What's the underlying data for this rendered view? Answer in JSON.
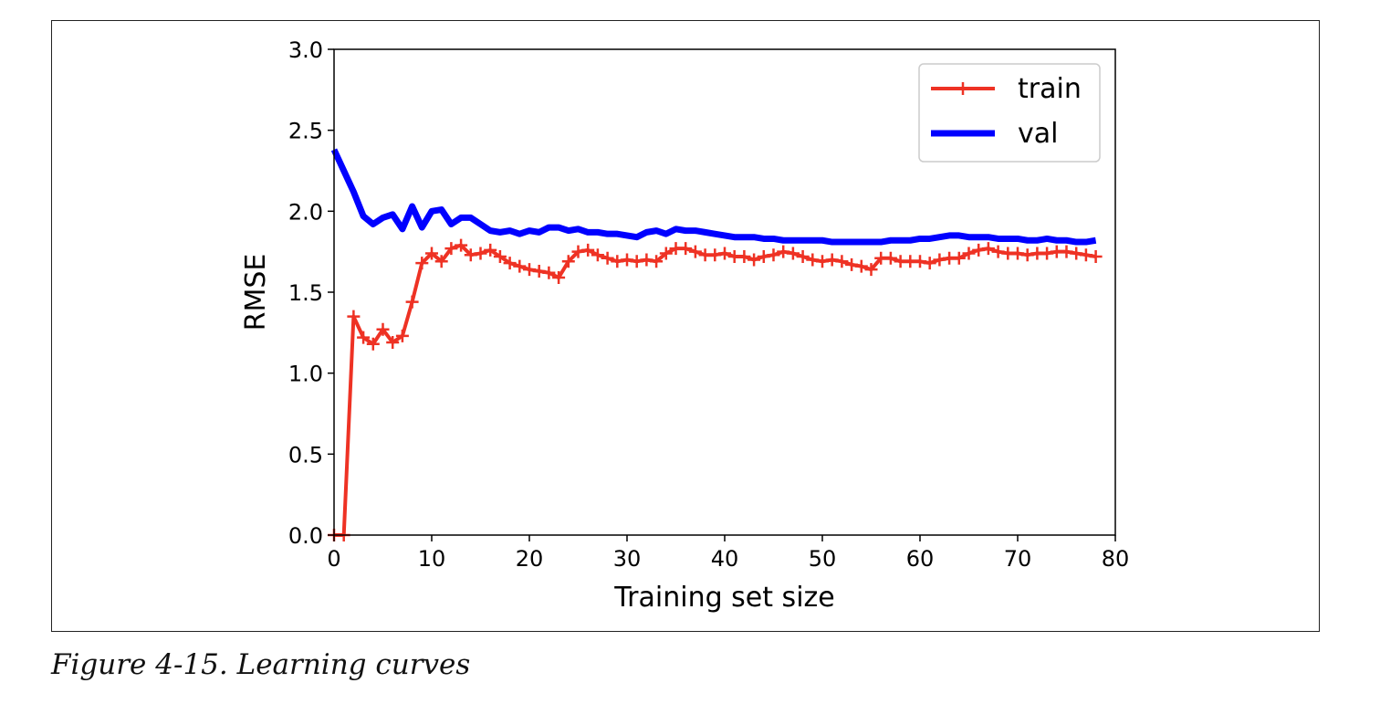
{
  "caption": "Figure 4-15. Learning curves",
  "chart_data": {
    "type": "line",
    "title": "",
    "xlabel": "Training set size",
    "ylabel": "RMSE",
    "xlim": [
      0,
      80
    ],
    "ylim": [
      0,
      3.0
    ],
    "xticks": [
      0,
      10,
      20,
      30,
      40,
      50,
      60,
      70,
      80
    ],
    "xtick_labels": [
      "0",
      "10",
      "20",
      "30",
      "40",
      "50",
      "60",
      "70",
      "80"
    ],
    "yticks": [
      0,
      0.5,
      1.0,
      1.5,
      2.0,
      2.5,
      3.0
    ],
    "ytick_labels": [
      "0.0",
      "0.5",
      "1.0",
      "1.5",
      "2.0",
      "2.5",
      "3.0"
    ],
    "grid": false,
    "legend_position": "top-right",
    "x": [
      0,
      1,
      2,
      3,
      4,
      5,
      6,
      7,
      8,
      9,
      10,
      11,
      12,
      13,
      14,
      15,
      16,
      17,
      18,
      19,
      20,
      21,
      22,
      23,
      24,
      25,
      26,
      27,
      28,
      29,
      30,
      31,
      32,
      33,
      34,
      35,
      36,
      37,
      38,
      39,
      40,
      41,
      42,
      43,
      44,
      45,
      46,
      47,
      48,
      49,
      50,
      51,
      52,
      53,
      54,
      55,
      56,
      57,
      58,
      59,
      60,
      61,
      62,
      63,
      64,
      65,
      66,
      67,
      68,
      69,
      70,
      71,
      72,
      73,
      74,
      75,
      76,
      77,
      78
    ],
    "series": [
      {
        "name": "train",
        "color": "#ee3224",
        "marker": "+",
        "values": [
          0,
          0,
          1.35,
          1.22,
          1.18,
          1.27,
          1.19,
          1.23,
          1.44,
          1.68,
          1.74,
          1.69,
          1.77,
          1.79,
          1.73,
          1.74,
          1.76,
          1.72,
          1.68,
          1.66,
          1.64,
          1.63,
          1.62,
          1.59,
          1.69,
          1.75,
          1.76,
          1.73,
          1.71,
          1.69,
          1.7,
          1.69,
          1.7,
          1.69,
          1.74,
          1.77,
          1.77,
          1.75,
          1.73,
          1.73,
          1.74,
          1.72,
          1.72,
          1.7,
          1.72,
          1.73,
          1.75,
          1.74,
          1.72,
          1.7,
          1.69,
          1.7,
          1.69,
          1.67,
          1.66,
          1.64,
          1.71,
          1.71,
          1.69,
          1.69,
          1.69,
          1.68,
          1.7,
          1.71,
          1.71,
          1.74,
          1.76,
          1.77,
          1.75,
          1.74,
          1.74,
          1.73,
          1.74,
          1.74,
          1.75,
          1.75,
          1.74,
          1.73,
          1.72
        ]
      },
      {
        "name": "val",
        "color": "#0000ff",
        "marker": "",
        "values": [
          2.38,
          2.25,
          2.12,
          1.97,
          1.92,
          1.96,
          1.98,
          1.89,
          2.03,
          1.9,
          2.0,
          2.01,
          1.92,
          1.96,
          1.96,
          1.92,
          1.88,
          1.87,
          1.88,
          1.86,
          1.88,
          1.87,
          1.9,
          1.9,
          1.88,
          1.89,
          1.87,
          1.87,
          1.86,
          1.86,
          1.85,
          1.84,
          1.87,
          1.88,
          1.86,
          1.89,
          1.88,
          1.88,
          1.87,
          1.86,
          1.85,
          1.84,
          1.84,
          1.84,
          1.83,
          1.83,
          1.82,
          1.82,
          1.82,
          1.82,
          1.82,
          1.81,
          1.81,
          1.81,
          1.81,
          1.81,
          1.81,
          1.82,
          1.82,
          1.82,
          1.83,
          1.83,
          1.84,
          1.85,
          1.85,
          1.84,
          1.84,
          1.84,
          1.83,
          1.83,
          1.83,
          1.82,
          1.82,
          1.83,
          1.82,
          1.82,
          1.81,
          1.81,
          1.82
        ]
      }
    ]
  }
}
